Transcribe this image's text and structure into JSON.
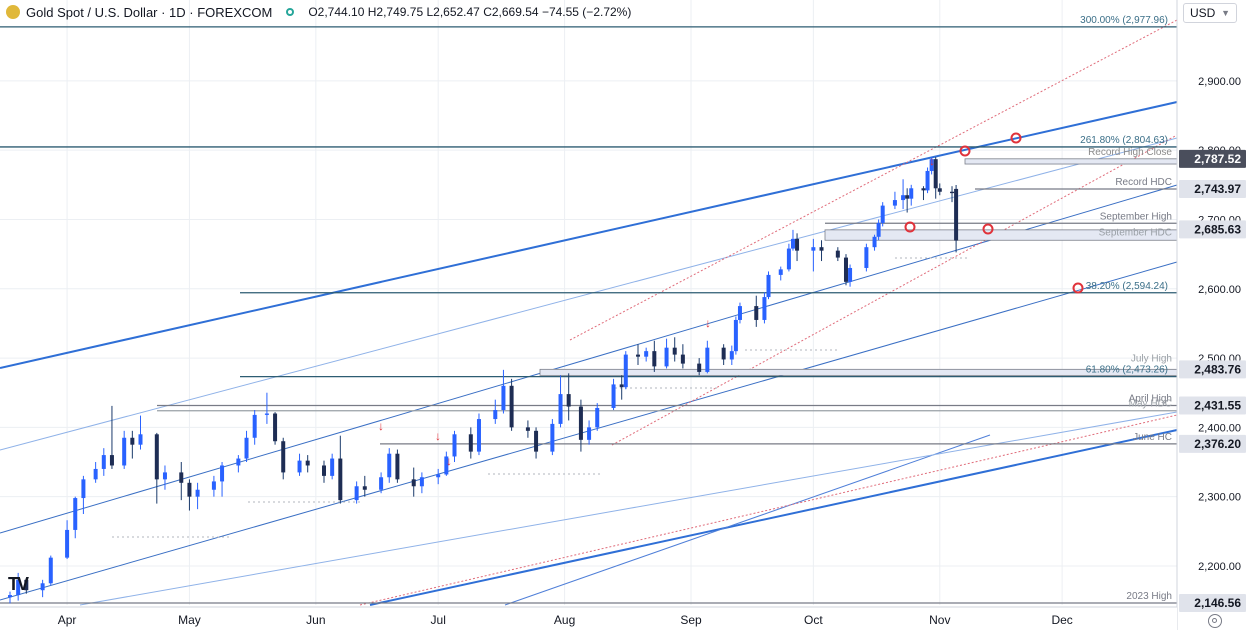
{
  "header": {
    "title": "Gold Spot / U.S. Dollar · 1D · FOREXCOM",
    "open": "O2,744.10",
    "high": "H2,749.75",
    "low": "L2,652.47",
    "close": "C2,669.54",
    "change": "−74.55 (−2.72%)"
  },
  "currency": "USD",
  "logo_text": "TV",
  "chart_data": {
    "type": "candlestick",
    "title": "",
    "xlabel": "",
    "ylabel": "",
    "x_range": [
      "2024-03-18",
      "2024-12-26"
    ],
    "ylim": [
      2135,
      3002
    ],
    "y_ticks": [
      {
        "value": 2200,
        "label": "2,200.00"
      },
      {
        "value": 2300,
        "label": "2,300.00"
      },
      {
        "value": 2400,
        "label": "2,400.00"
      },
      {
        "value": 2500,
        "label": "2,500.00"
      },
      {
        "value": 2600,
        "label": "2,600.00"
      },
      {
        "value": 2700,
        "label": "2,700.00"
      },
      {
        "value": 2800,
        "label": "2,800.00"
      },
      {
        "value": 2900,
        "label": "2,900.00"
      }
    ],
    "x_ticks": [
      {
        "date": "2024-04-01",
        "label": "Apr"
      },
      {
        "date": "2024-05-01",
        "label": "May"
      },
      {
        "date": "2024-06-01",
        "label": "Jun"
      },
      {
        "date": "2024-07-01",
        "label": "Jul"
      },
      {
        "date": "2024-08-01",
        "label": "Aug"
      },
      {
        "date": "2024-09-01",
        "label": "Sep"
      },
      {
        "date": "2024-10-01",
        "label": "Oct"
      },
      {
        "date": "2024-11-01",
        "label": "Nov"
      },
      {
        "date": "2024-12-01",
        "label": "Dec"
      }
    ],
    "price_badges": [
      {
        "value": 2787.52,
        "label": "2,787.52",
        "style": "dark"
      },
      {
        "value": 2743.97,
        "label": "2,743.97",
        "style": "light"
      },
      {
        "value": 2685.63,
        "label": "2,685.63",
        "style": "light"
      },
      {
        "value": 2483.76,
        "label": "2,483.76",
        "style": "light"
      },
      {
        "value": 2431.55,
        "label": "2,431.55",
        "style": "light"
      },
      {
        "value": 2376.2,
        "label": "2,376.20",
        "style": "light"
      },
      {
        "value": 2146.56,
        "label": "2,146.56",
        "style": "light"
      }
    ],
    "levels": [
      {
        "value": 2977.96,
        "label": "300.00% (2,977.96)",
        "color": "#3b6f88"
      },
      {
        "value": 2804.63,
        "label": "261.80% (2,804.63)",
        "color": "#3b6f88"
      },
      {
        "value": 2787.52,
        "label": "Record High Close",
        "color": "#8a8a8a"
      },
      {
        "value": 2743.97,
        "label": "Record HDC",
        "color": "#787b86"
      },
      {
        "value": 2694.5,
        "label": "September High",
        "color": "#787b86"
      },
      {
        "value": 2671.4,
        "label": "September HDC",
        "color": "#9aa0a6"
      },
      {
        "value": 2594.24,
        "label": "38.20% (2,594.24)",
        "color": "#3b6f88"
      },
      {
        "value": 2489.0,
        "label": "July High",
        "color": "#9aa0a6"
      },
      {
        "value": 2473.26,
        "label": "61.80% (2,473.26)",
        "color": "#3b6f88"
      },
      {
        "value": 2431.55,
        "label": "April High",
        "color": "#787b86"
      },
      {
        "value": 2424.0,
        "label": "May HDC",
        "color": "#9aa0a6"
      },
      {
        "value": 2376.2,
        "label": "June HC",
        "color": "#787b86"
      },
      {
        "value": 2146.56,
        "label": "2023 High",
        "color": "#787b86"
      }
    ],
    "series": [
      {
        "name": "",
        "type": "candlestick",
        "color_up": "#2962ff",
        "color_down": "#1a3a6b",
        "points": [
          {
            "date": "2024-03-18",
            "o": 2155,
            "h": 2163,
            "l": 2146,
            "c": 2158
          },
          {
            "date": "2024-03-20",
            "o": 2158,
            "h": 2190,
            "l": 2150,
            "c": 2180
          },
          {
            "date": "2024-03-22",
            "o": 2180,
            "h": 2182,
            "l": 2160,
            "c": 2165
          },
          {
            "date": "2024-03-26",
            "o": 2165,
            "h": 2180,
            "l": 2155,
            "c": 2175
          },
          {
            "date": "2024-03-28",
            "o": 2175,
            "h": 2215,
            "l": 2172,
            "c": 2212
          },
          {
            "date": "2024-04-01",
            "o": 2212,
            "h": 2266,
            "l": 2210,
            "c": 2252
          },
          {
            "date": "2024-04-03",
            "o": 2252,
            "h": 2300,
            "l": 2240,
            "c": 2298
          },
          {
            "date": "2024-04-05",
            "o": 2298,
            "h": 2330,
            "l": 2275,
            "c": 2325
          },
          {
            "date": "2024-04-08",
            "o": 2325,
            "h": 2350,
            "l": 2320,
            "c": 2340
          },
          {
            "date": "2024-04-10",
            "o": 2340,
            "h": 2370,
            "l": 2330,
            "c": 2360
          },
          {
            "date": "2024-04-12",
            "o": 2360,
            "h": 2431,
            "l": 2340,
            "c": 2345
          },
          {
            "date": "2024-04-15",
            "o": 2345,
            "h": 2395,
            "l": 2340,
            "c": 2385
          },
          {
            "date": "2024-04-17",
            "o": 2385,
            "h": 2395,
            "l": 2355,
            "c": 2375
          },
          {
            "date": "2024-04-19",
            "o": 2375,
            "h": 2417,
            "l": 2368,
            "c": 2390
          },
          {
            "date": "2024-04-23",
            "o": 2390,
            "h": 2392,
            "l": 2290,
            "c": 2325
          },
          {
            "date": "2024-04-25",
            "o": 2325,
            "h": 2345,
            "l": 2310,
            "c": 2335
          },
          {
            "date": "2024-04-29",
            "o": 2335,
            "h": 2350,
            "l": 2295,
            "c": 2320
          },
          {
            "date": "2024-05-01",
            "o": 2320,
            "h": 2325,
            "l": 2280,
            "c": 2300
          },
          {
            "date": "2024-05-03",
            "o": 2300,
            "h": 2320,
            "l": 2282,
            "c": 2310
          },
          {
            "date": "2024-05-07",
            "o": 2310,
            "h": 2330,
            "l": 2300,
            "c": 2322
          },
          {
            "date": "2024-05-09",
            "o": 2322,
            "h": 2350,
            "l": 2300,
            "c": 2345
          },
          {
            "date": "2024-05-13",
            "o": 2345,
            "h": 2360,
            "l": 2335,
            "c": 2355
          },
          {
            "date": "2024-05-15",
            "o": 2355,
            "h": 2395,
            "l": 2350,
            "c": 2385
          },
          {
            "date": "2024-05-17",
            "o": 2385,
            "h": 2425,
            "l": 2375,
            "c": 2418
          },
          {
            "date": "2024-05-20",
            "o": 2418,
            "h": 2450,
            "l": 2405,
            "c": 2420
          },
          {
            "date": "2024-05-22",
            "o": 2420,
            "h": 2422,
            "l": 2375,
            "c": 2380
          },
          {
            "date": "2024-05-24",
            "o": 2380,
            "h": 2385,
            "l": 2325,
            "c": 2335
          },
          {
            "date": "2024-05-28",
            "o": 2335,
            "h": 2362,
            "l": 2330,
            "c": 2352
          },
          {
            "date": "2024-05-30",
            "o": 2352,
            "h": 2360,
            "l": 2335,
            "c": 2345
          },
          {
            "date": "2024-06-03",
            "o": 2345,
            "h": 2352,
            "l": 2320,
            "c": 2330
          },
          {
            "date": "2024-06-05",
            "o": 2330,
            "h": 2362,
            "l": 2325,
            "c": 2355
          },
          {
            "date": "2024-06-07",
            "o": 2355,
            "h": 2388,
            "l": 2290,
            "c": 2295
          },
          {
            "date": "2024-06-11",
            "o": 2295,
            "h": 2322,
            "l": 2290,
            "c": 2315
          },
          {
            "date": "2024-06-13",
            "o": 2315,
            "h": 2330,
            "l": 2300,
            "c": 2310
          },
          {
            "date": "2024-06-17",
            "o": 2310,
            "h": 2335,
            "l": 2305,
            "c": 2328
          },
          {
            "date": "2024-06-19",
            "o": 2328,
            "h": 2370,
            "l": 2320,
            "c": 2362
          },
          {
            "date": "2024-06-21",
            "o": 2362,
            "h": 2368,
            "l": 2320,
            "c": 2325
          },
          {
            "date": "2024-06-25",
            "o": 2325,
            "h": 2342,
            "l": 2300,
            "c": 2315
          },
          {
            "date": "2024-06-27",
            "o": 2315,
            "h": 2335,
            "l": 2305,
            "c": 2328
          },
          {
            "date": "2024-07-01",
            "o": 2328,
            "h": 2340,
            "l": 2318,
            "c": 2332
          },
          {
            "date": "2024-07-03",
            "o": 2332,
            "h": 2365,
            "l": 2330,
            "c": 2358
          },
          {
            "date": "2024-07-05",
            "o": 2358,
            "h": 2395,
            "l": 2350,
            "c": 2390
          },
          {
            "date": "2024-07-09",
            "o": 2390,
            "h": 2400,
            "l": 2355,
            "c": 2365
          },
          {
            "date": "2024-07-11",
            "o": 2365,
            "h": 2420,
            "l": 2360,
            "c": 2412
          },
          {
            "date": "2024-07-15",
            "o": 2412,
            "h": 2440,
            "l": 2405,
            "c": 2425
          },
          {
            "date": "2024-07-17",
            "o": 2425,
            "h": 2483,
            "l": 2420,
            "c": 2460
          },
          {
            "date": "2024-07-19",
            "o": 2460,
            "h": 2470,
            "l": 2395,
            "c": 2400
          },
          {
            "date": "2024-07-23",
            "o": 2400,
            "h": 2410,
            "l": 2385,
            "c": 2395
          },
          {
            "date": "2024-07-25",
            "o": 2395,
            "h": 2400,
            "l": 2355,
            "c": 2365
          },
          {
            "date": "2024-07-29",
            "o": 2365,
            "h": 2412,
            "l": 2360,
            "c": 2405
          },
          {
            "date": "2024-07-31",
            "o": 2405,
            "h": 2475,
            "l": 2400,
            "c": 2448
          },
          {
            "date": "2024-08-02",
            "o": 2448,
            "h": 2478,
            "l": 2410,
            "c": 2430
          },
          {
            "date": "2024-08-05",
            "o": 2430,
            "h": 2440,
            "l": 2365,
            "c": 2382
          },
          {
            "date": "2024-08-07",
            "o": 2382,
            "h": 2410,
            "l": 2375,
            "c": 2400
          },
          {
            "date": "2024-08-09",
            "o": 2400,
            "h": 2435,
            "l": 2395,
            "c": 2428
          },
          {
            "date": "2024-08-13",
            "o": 2428,
            "h": 2470,
            "l": 2425,
            "c": 2462
          },
          {
            "date": "2024-08-15",
            "o": 2462,
            "h": 2475,
            "l": 2440,
            "c": 2458
          },
          {
            "date": "2024-08-16",
            "o": 2458,
            "h": 2510,
            "l": 2455,
            "c": 2505
          },
          {
            "date": "2024-08-19",
            "o": 2505,
            "h": 2520,
            "l": 2490,
            "c": 2502
          },
          {
            "date": "2024-08-21",
            "o": 2502,
            "h": 2515,
            "l": 2495,
            "c": 2510
          },
          {
            "date": "2024-08-23",
            "o": 2510,
            "h": 2525,
            "l": 2480,
            "c": 2488
          },
          {
            "date": "2024-08-26",
            "o": 2488,
            "h": 2528,
            "l": 2485,
            "c": 2515
          },
          {
            "date": "2024-08-28",
            "o": 2515,
            "h": 2530,
            "l": 2495,
            "c": 2505
          },
          {
            "date": "2024-08-30",
            "o": 2505,
            "h": 2520,
            "l": 2485,
            "c": 2492
          },
          {
            "date": "2024-09-03",
            "o": 2492,
            "h": 2500,
            "l": 2475,
            "c": 2480
          },
          {
            "date": "2024-09-05",
            "o": 2480,
            "h": 2525,
            "l": 2478,
            "c": 2515
          },
          {
            "date": "2024-09-09",
            "o": 2515,
            "h": 2520,
            "l": 2490,
            "c": 2498
          },
          {
            "date": "2024-09-11",
            "o": 2498,
            "h": 2518,
            "l": 2490,
            "c": 2510
          },
          {
            "date": "2024-09-12",
            "o": 2510,
            "h": 2560,
            "l": 2505,
            "c": 2555
          },
          {
            "date": "2024-09-13",
            "o": 2555,
            "h": 2580,
            "l": 2550,
            "c": 2575
          },
          {
            "date": "2024-09-17",
            "o": 2575,
            "h": 2590,
            "l": 2545,
            "c": 2555
          },
          {
            "date": "2024-09-19",
            "o": 2555,
            "h": 2595,
            "l": 2550,
            "c": 2588
          },
          {
            "date": "2024-09-20",
            "o": 2588,
            "h": 2625,
            "l": 2585,
            "c": 2620
          },
          {
            "date": "2024-09-23",
            "o": 2620,
            "h": 2632,
            "l": 2612,
            "c": 2628
          },
          {
            "date": "2024-09-25",
            "o": 2628,
            "h": 2665,
            "l": 2625,
            "c": 2658
          },
          {
            "date": "2024-09-26",
            "o": 2658,
            "h": 2685,
            "l": 2655,
            "c": 2672
          },
          {
            "date": "2024-09-27",
            "o": 2672,
            "h": 2680,
            "l": 2640,
            "c": 2655
          },
          {
            "date": "2024-10-01",
            "o": 2655,
            "h": 2672,
            "l": 2625,
            "c": 2660
          },
          {
            "date": "2024-10-03",
            "o": 2660,
            "h": 2670,
            "l": 2640,
            "c": 2655
          },
          {
            "date": "2024-10-07",
            "o": 2655,
            "h": 2660,
            "l": 2640,
            "c": 2645
          },
          {
            "date": "2024-10-09",
            "o": 2645,
            "h": 2650,
            "l": 2605,
            "c": 2610
          },
          {
            "date": "2024-10-10",
            "o": 2610,
            "h": 2635,
            "l": 2603,
            "c": 2630
          },
          {
            "date": "2024-10-14",
            "o": 2630,
            "h": 2665,
            "l": 2625,
            "c": 2660
          },
          {
            "date": "2024-10-16",
            "o": 2660,
            "h": 2678,
            "l": 2655,
            "c": 2675
          },
          {
            "date": "2024-10-17",
            "o": 2675,
            "h": 2700,
            "l": 2670,
            "c": 2695
          },
          {
            "date": "2024-10-18",
            "o": 2695,
            "h": 2725,
            "l": 2690,
            "c": 2720
          },
          {
            "date": "2024-10-21",
            "o": 2720,
            "h": 2740,
            "l": 2715,
            "c": 2728
          },
          {
            "date": "2024-10-23",
            "o": 2728,
            "h": 2758,
            "l": 2715,
            "c": 2735
          },
          {
            "date": "2024-10-24",
            "o": 2735,
            "h": 2745,
            "l": 2710,
            "c": 2730
          },
          {
            "date": "2024-10-25",
            "o": 2730,
            "h": 2750,
            "l": 2720,
            "c": 2745
          },
          {
            "date": "2024-10-28",
            "o": 2745,
            "h": 2748,
            "l": 2728,
            "c": 2742
          },
          {
            "date": "2024-10-29",
            "o": 2742,
            "h": 2775,
            "l": 2738,
            "c": 2770
          },
          {
            "date": "2024-10-30",
            "o": 2770,
            "h": 2790,
            "l": 2765,
            "c": 2787
          },
          {
            "date": "2024-10-31",
            "o": 2787,
            "h": 2790,
            "l": 2730,
            "c": 2745
          },
          {
            "date": "2024-11-01",
            "o": 2745,
            "h": 2752,
            "l": 2735,
            "c": 2740
          },
          {
            "date": "2024-11-04",
            "o": 2740,
            "h": 2748,
            "l": 2725,
            "c": 2738
          },
          {
            "date": "2024-11-05",
            "o": 2744.1,
            "h": 2749.75,
            "l": 2652.47,
            "c": 2669.54
          }
        ]
      }
    ],
    "grid": true,
    "legend": "none"
  }
}
